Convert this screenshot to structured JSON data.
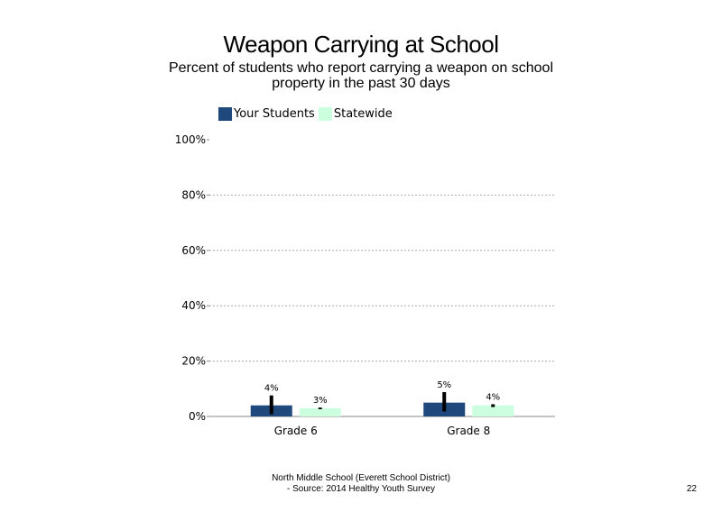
{
  "title": "Weapon Carrying at School",
  "subtitle": "Percent of students who report carrying a weapon on school property in the past 30 days",
  "footer": {
    "line1": "North Middle School (Everett School District)",
    "line2": "- Source: 2014 Healthy Youth Survey"
  },
  "page_number": "22",
  "colors": {
    "your_students": "#1f497d",
    "statewide": "#ccffdd",
    "errorbar": "#000000",
    "grid": "#aaaaaa"
  },
  "chart_data": {
    "type": "bar",
    "title": "Weapon Carrying at School",
    "categories": [
      "Grade 6",
      "Grade 8"
    ],
    "series": [
      {
        "name": "Your Students",
        "values": [
          4,
          5
        ],
        "labels": [
          "4%",
          "5%"
        ],
        "error_low": [
          0.8,
          1.8
        ],
        "error_high": [
          7.6,
          8.8
        ]
      },
      {
        "name": "Statewide",
        "values": [
          3,
          4
        ],
        "labels": [
          "3%",
          "4%"
        ],
        "error_low": [
          2.6,
          3.4
        ],
        "error_high": [
          3.2,
          4.4
        ]
      }
    ],
    "ylim": [
      0,
      100
    ],
    "yticks": [
      0,
      20,
      40,
      60,
      80,
      100
    ],
    "ytick_labels": [
      "0%",
      "20%",
      "40%",
      "60%",
      "80%",
      "100%"
    ],
    "xlabel": "",
    "ylabel": "",
    "grid": true,
    "legend_position": "top-left"
  }
}
